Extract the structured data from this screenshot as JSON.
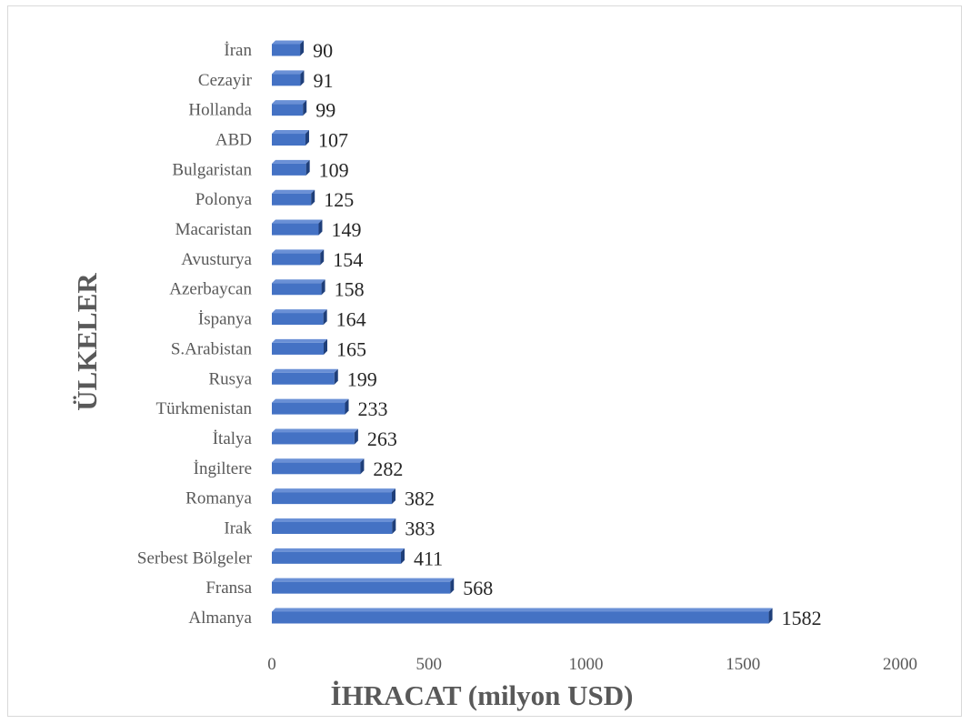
{
  "chart_data": {
    "type": "bar",
    "orientation": "horizontal",
    "categories": [
      "İran",
      "Cezayir",
      "Hollanda",
      "ABD",
      "Bulgaristan",
      "Polonya",
      "Macaristan",
      "Avusturya",
      "Azerbaycan",
      "İspanya",
      "S.Arabistan",
      "Rusya",
      "Türkmenistan",
      "İtalya",
      "İngiltere",
      "Romanya",
      "Irak",
      "Serbest Bölgeler",
      "Fransa",
      "Almanya"
    ],
    "values": [
      90,
      91,
      99,
      107,
      109,
      125,
      149,
      154,
      158,
      164,
      165,
      199,
      233,
      263,
      282,
      382,
      383,
      411,
      568,
      1582
    ],
    "xlabel": "İHRACAT (milyon USD)",
    "ylabel": "ÜLKELER",
    "xlim": [
      0,
      2000
    ],
    "xticks": [
      0,
      500,
      1000,
      1500,
      2000
    ],
    "grid": false,
    "bar_color": "#4472c4",
    "bar_side_color": "#1f3f7a",
    "bar_top_color": "#6a90d6"
  }
}
